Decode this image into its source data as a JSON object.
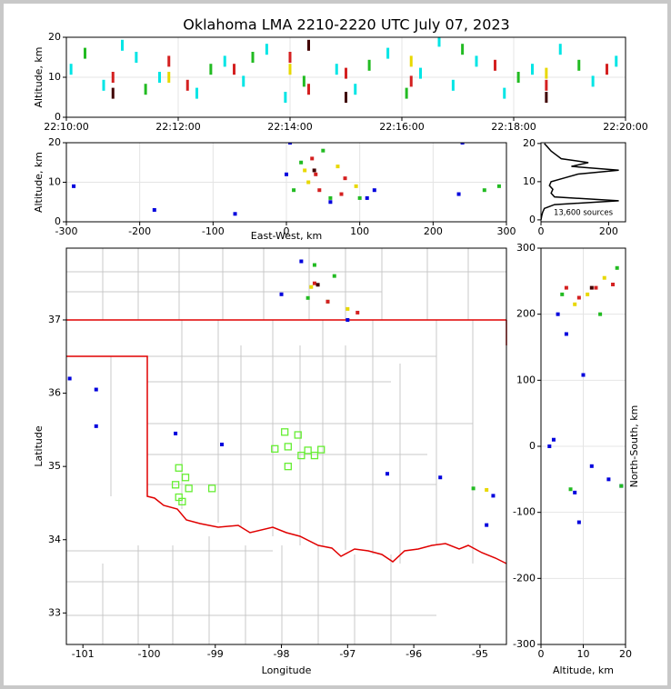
{
  "chart_data": [
    {
      "type": "scatter",
      "title": "Oklahoma LMA 2210-2220 UTC July 07, 2023",
      "ylabel": "Altitude, km",
      "xlim": [
        "22:10:00",
        "22:20:00"
      ],
      "xticks": [
        "22:10:00",
        "22:12:00",
        "22:14:00",
        "22:16:00",
        "22:18:00",
        "22:20:00"
      ],
      "ylim": [
        0,
        20
      ],
      "yticks": [
        0,
        10,
        20
      ],
      "grid": true,
      "marker": "strip",
      "series": [
        {
          "color": "#00e5e5",
          "x": [
            "22:10:05",
            "22:10:40",
            "22:11:00",
            "22:11:15",
            "22:11:40",
            "22:12:20",
            "22:12:50",
            "22:13:10",
            "22:13:35",
            "22:13:55",
            "22:14:50",
            "22:15:10",
            "22:15:45",
            "22:16:20",
            "22:16:40",
            "22:16:55",
            "22:17:20",
            "22:17:50",
            "22:18:20",
            "22:18:50",
            "22:19:25",
            "22:19:50"
          ],
          "y": [
            12,
            8,
            18,
            15,
            10,
            6,
            14,
            9,
            17,
            5,
            12,
            7,
            16,
            11,
            19,
            8,
            14,
            6,
            12,
            17,
            9,
            14
          ]
        },
        {
          "color": "#22bb22",
          "x": [
            "22:10:20",
            "22:11:25",
            "22:12:35",
            "22:13:20",
            "22:14:15",
            "22:15:25",
            "22:16:05",
            "22:17:05",
            "22:18:05",
            "22:19:10"
          ],
          "y": [
            16,
            7,
            12,
            15,
            9,
            13,
            6,
            17,
            10,
            13
          ]
        },
        {
          "color": "#e8d800",
          "x": [
            "22:11:50",
            "22:14:00",
            "22:16:10",
            "22:18:35"
          ],
          "y": [
            10,
            12,
            14,
            11
          ]
        },
        {
          "color": "#d42020",
          "x": [
            "22:10:50",
            "22:11:50",
            "22:12:10",
            "22:13:00",
            "22:14:00",
            "22:14:20",
            "22:15:00",
            "22:16:10",
            "22:17:40",
            "22:18:35",
            "22:19:40"
          ],
          "y": [
            10,
            14,
            8,
            12,
            15,
            7,
            11,
            9,
            13,
            8,
            12
          ]
        },
        {
          "color": "#400000",
          "x": [
            "22:10:50",
            "22:14:20",
            "22:15:00",
            "22:18:35"
          ],
          "y": [
            6,
            18,
            5,
            5
          ]
        }
      ]
    },
    {
      "type": "scatter",
      "xlabel": "East-West, km",
      "ylabel": "Altitude, km",
      "xlim": [
        -300,
        300
      ],
      "xticks": [
        -300,
        -200,
        -100,
        0,
        100,
        200,
        300
      ],
      "ylim": [
        0,
        20
      ],
      "yticks": [
        0,
        10,
        20
      ],
      "grid": true,
      "marker": "dot",
      "series": [
        {
          "color": "#0000dd",
          "x": [
            -290,
            -180,
            -70,
            0,
            60,
            120,
            235,
            240,
            5,
            110
          ],
          "y": [
            9,
            3,
            2,
            12,
            5,
            8,
            7,
            20,
            20,
            6
          ]
        },
        {
          "color": "#22bb22",
          "x": [
            20,
            50,
            100,
            270,
            290,
            10,
            60
          ],
          "y": [
            15,
            18,
            6,
            8,
            9,
            8,
            6
          ]
        },
        {
          "color": "#e8d800",
          "x": [
            30,
            70,
            95,
            25
          ],
          "y": [
            10,
            14,
            9,
            13
          ]
        },
        {
          "color": "#d42020",
          "x": [
            40,
            45,
            80,
            35,
            75
          ],
          "y": [
            12,
            8,
            11,
            16,
            7
          ]
        },
        {
          "color": "#400000",
          "x": [
            38
          ],
          "y": [
            13
          ]
        }
      ]
    },
    {
      "type": "line",
      "annotation": "13,600 sources",
      "xlim": [
        0,
        250
      ],
      "xticks": [
        0,
        200
      ],
      "ylim": [
        -0.5,
        20.2
      ],
      "yticks": [
        0,
        10,
        20
      ],
      "series": [
        {
          "color": "#000000",
          "x": [
            0,
            2,
            5,
            10,
            40,
            230,
            40,
            30,
            35,
            25,
            30,
            70,
            110,
            230,
            90,
            140,
            60,
            45,
            30,
            20,
            10
          ],
          "y": [
            0,
            1,
            2,
            3,
            4,
            5,
            6,
            7,
            8,
            9,
            10,
            11,
            12,
            13,
            14,
            15,
            16,
            17,
            18,
            19,
            20
          ]
        }
      ]
    },
    {
      "type": "map",
      "xlabel": "Longitude",
      "ylabel": "Latitude",
      "xlim": [
        -101.25,
        -94.6
      ],
      "xticks": [
        -101,
        -100,
        -99,
        -98,
        -97,
        -96,
        -95
      ],
      "ylim": [
        32.57,
        37.98
      ],
      "yticks": [
        33,
        34,
        35,
        36,
        37
      ],
      "grid": false,
      "series": [
        {
          "color": "#0000dd",
          "marker": "dot",
          "x": [
            -101.2,
            -100.8,
            -100.8,
            -99.6,
            -98.9,
            -96.4,
            -95.6,
            -94.8,
            -94.9,
            -97.7,
            -97.0,
            -98.0
          ],
          "y": [
            36.2,
            36.05,
            35.55,
            35.45,
            35.3,
            34.9,
            34.85,
            34.6,
            34.2,
            37.8,
            37.0,
            37.35
          ]
        },
        {
          "color": "#22bb22",
          "marker": "dot",
          "x": [
            -97.5,
            -97.6,
            -97.3,
            -95.1,
            -97.2
          ],
          "y": [
            37.75,
            37.3,
            37.25,
            34.7,
            37.6
          ]
        },
        {
          "color": "#e8d800",
          "marker": "dot",
          "x": [
            -97.55,
            -97.0,
            -94.9
          ],
          "y": [
            37.45,
            37.15,
            34.68
          ]
        },
        {
          "color": "#d42020",
          "marker": "dot",
          "x": [
            -97.5,
            -97.3,
            -96.85
          ],
          "y": [
            37.5,
            37.25,
            37.1
          ]
        },
        {
          "color": "#400000",
          "marker": "dot",
          "x": [
            -97.45
          ],
          "y": [
            37.48
          ]
        },
        {
          "color": "#66ee33",
          "marker": "square-open",
          "x": [
            -99.55,
            -99.45,
            -99.6,
            -99.4,
            -99.05,
            -99.55,
            -99.5,
            -97.95,
            -97.75,
            -98.1,
            -97.9,
            -97.6,
            -97.4,
            -97.5,
            -97.7,
            -97.9
          ],
          "y": [
            34.98,
            34.85,
            34.75,
            34.7,
            34.7,
            34.58,
            34.52,
            35.47,
            35.43,
            35.24,
            35.27,
            35.22,
            35.23,
            35.15,
            35.15,
            35.0
          ]
        }
      ]
    },
    {
      "type": "scatter",
      "xlabel": "Altitude, km",
      "ylabel": "North-South, km",
      "ylabel_side": "right",
      "xlim": [
        0,
        20
      ],
      "xticks": [
        0,
        10,
        20
      ],
      "ylim": [
        -300,
        300
      ],
      "yticks": [
        -300,
        -200,
        -100,
        0,
        100,
        200,
        300
      ],
      "grid": true,
      "marker": "dot",
      "series": [
        {
          "color": "#0000dd",
          "x": [
            3,
            2,
            8,
            10,
            12,
            16,
            6,
            9,
            19,
            4
          ],
          "y": [
            10,
            0,
            -70,
            108,
            -30,
            -50,
            170,
            -115,
            -60,
            200
          ]
        },
        {
          "color": "#22bb22",
          "x": [
            5,
            18,
            14,
            19,
            7
          ],
          "y": [
            230,
            270,
            200,
            -60,
            -65
          ]
        },
        {
          "color": "#e8d800",
          "x": [
            8,
            15,
            11
          ],
          "y": [
            215,
            255,
            230
          ]
        },
        {
          "color": "#d42020",
          "x": [
            6,
            9,
            13,
            17
          ],
          "y": [
            240,
            225,
            240,
            245
          ]
        },
        {
          "color": "#400000",
          "x": [
            12
          ],
          "y": [
            240
          ]
        }
      ]
    }
  ]
}
